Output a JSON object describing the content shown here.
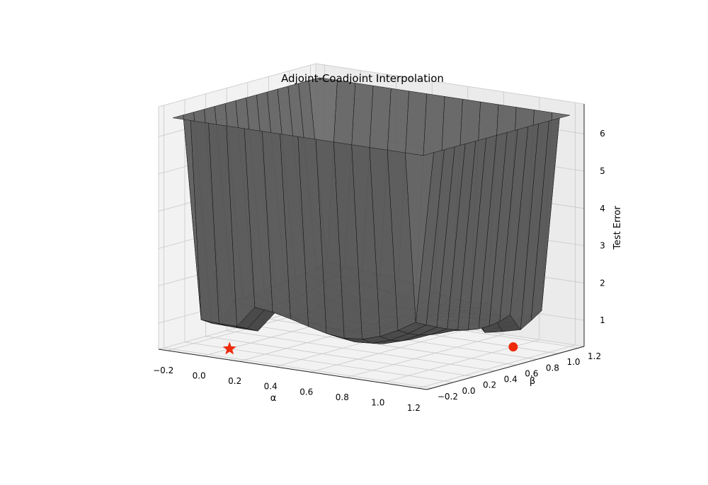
{
  "chart_data": {
    "type": "surface",
    "title": "Adjoint-Coadjoint Interpolation",
    "xlabel": "α",
    "ylabel": "β",
    "zlabel": "Test Error",
    "xlim": [
      -0.25,
      1.25
    ],
    "ylim": [
      -0.25,
      1.25
    ],
    "zlim": [
      0.3,
      6.8
    ],
    "x_ticks": [
      "−0.2",
      "0.0",
      "0.2",
      "0.4",
      "0.6",
      "0.8",
      "1.0",
      "1.2"
    ],
    "y_ticks": [
      "−0.2",
      "0.0",
      "0.2",
      "0.4",
      "0.6",
      "0.8",
      "1.0",
      "1.2"
    ],
    "z_ticks": [
      "1",
      "2",
      "3",
      "4",
      "5",
      "6"
    ],
    "grid": true,
    "surface": {
      "x": [
        -0.2,
        -0.1,
        0.0,
        0.1,
        0.2,
        0.3,
        0.4,
        0.5,
        0.6,
        0.7,
        0.8,
        0.9,
        1.0,
        1.1,
        1.2
      ],
      "y": [
        -0.2,
        -0.1,
        0.0,
        0.1,
        0.2,
        0.3,
        0.4,
        0.5,
        0.6,
        0.7,
        0.8,
        0.9,
        1.0,
        1.1,
        1.2
      ],
      "basin_min": 0.8,
      "rim_max": 6.5,
      "color": "#6e6e6e",
      "edge_color": "#111111"
    },
    "markers": [
      {
        "shape": "star",
        "x": 0.0,
        "y": 0.0,
        "z": 0.3,
        "color": "#ee2a0b"
      },
      {
        "shape": "circle",
        "x": 1.0,
        "y": 1.0,
        "z": 0.3,
        "color": "#ee2a0b"
      }
    ]
  }
}
